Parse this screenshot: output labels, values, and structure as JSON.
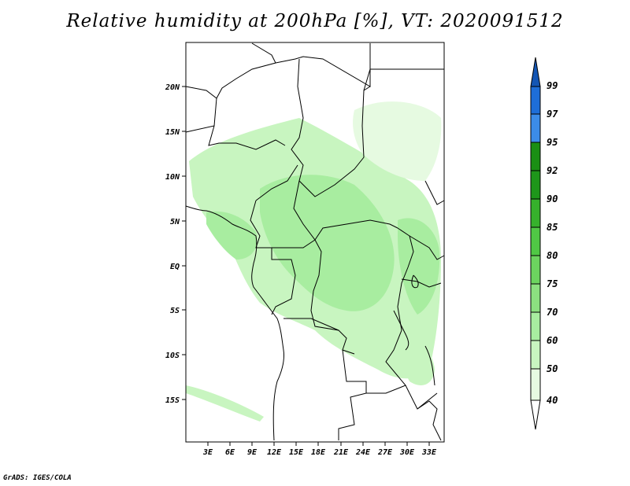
{
  "title": "Relative humidity at 200hPa [%], VT: 2020091512",
  "credit": "GrADS: IGES/COLA",
  "map": {
    "lat_labels": [
      "20N",
      "15N",
      "10N",
      "5N",
      "EQ",
      "5S",
      "10S",
      "15S"
    ],
    "lon_labels": [
      "3E",
      "6E",
      "9E",
      "12E",
      "15E",
      "18E",
      "21E",
      "24E",
      "27E",
      "30E",
      "33E"
    ],
    "lat_range": [
      -20,
      25
    ],
    "lon_range": [
      0,
      35
    ]
  },
  "legend": {
    "levels": [
      "40",
      "50",
      "60",
      "70",
      "75",
      "80",
      "85",
      "90",
      "92",
      "95",
      "97",
      "99"
    ],
    "colors": [
      "#ffffff",
      "#e6fae1",
      "#c8f5c0",
      "#a8eda0",
      "#8ce080",
      "#6cd45f",
      "#50c845",
      "#36b12c",
      "#1e961a",
      "#1a8f14",
      "#3c8ce8",
      "#1e6ed8",
      "#1456b4"
    ]
  }
}
